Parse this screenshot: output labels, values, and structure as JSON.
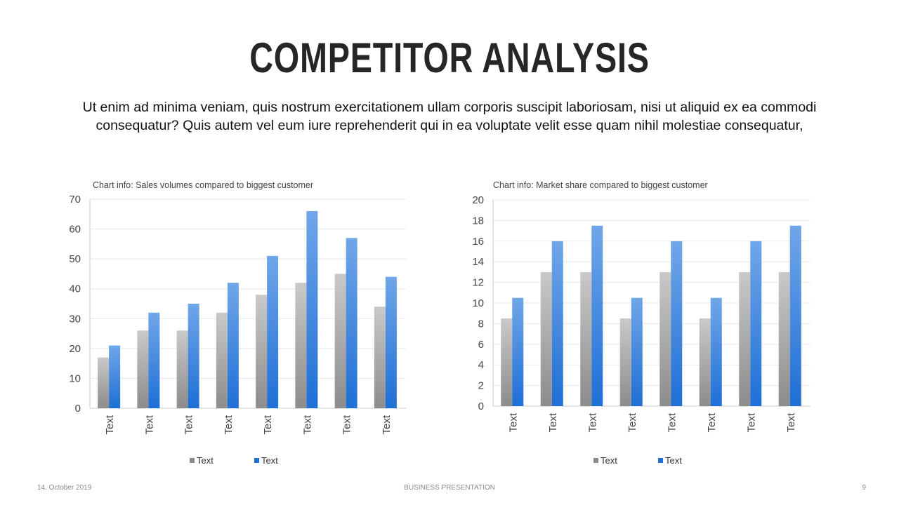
{
  "title": "COMPETITOR ANALYSIS",
  "intro": "Ut enim ad minima veniam, quis nostrum exercitationem ullam corporis suscipit laboriosam, nisi ut aliquid ex ea commodi consequatur? Quis autem vel eum iure reprehenderit qui in ea voluptate velit esse quam nihil molestiae consequatur,",
  "footer": {
    "date": "14. October 2019",
    "center": "BUSINESS PRESENTATION",
    "page": "9"
  },
  "colors": {
    "series_gray_top": "#c9c9c9",
    "series_gray_bottom": "#8c8c8c",
    "series_blue_top": "#70a6e8",
    "series_blue_bottom": "#1f6fd6",
    "grid": "#e8e8e8",
    "axis": "#cccccc"
  },
  "chart_data": [
    {
      "type": "bar",
      "title": "Chart info: Sales volumes compared to biggest customer",
      "categories": [
        "Text",
        "Text",
        "Text",
        "Text",
        "Text",
        "Text",
        "Text",
        "Text"
      ],
      "series": [
        {
          "name": "Text",
          "values": [
            17,
            26,
            26,
            32,
            38,
            42,
            45,
            34
          ]
        },
        {
          "name": "Text",
          "values": [
            21,
            32,
            35,
            42,
            51,
            66,
            57,
            44
          ]
        }
      ],
      "ylim": [
        0,
        70
      ],
      "yticks": [
        0,
        10,
        20,
        30,
        40,
        50,
        60,
        70
      ],
      "grid": true,
      "legend": "bottom"
    },
    {
      "type": "bar",
      "title": "Chart info: Market share compared to biggest customer",
      "categories": [
        "Text",
        "Text",
        "Text",
        "Text",
        "Text",
        "Text",
        "Text",
        "Text"
      ],
      "series": [
        {
          "name": "Text",
          "values": [
            8.5,
            13,
            13,
            8.5,
            13,
            8.5,
            13,
            13
          ]
        },
        {
          "name": "Text",
          "values": [
            10.5,
            16,
            17.5,
            10.5,
            16,
            10.5,
            16,
            17.5
          ]
        }
      ],
      "ylim": [
        0,
        20
      ],
      "yticks": [
        0,
        2,
        4,
        6,
        8,
        10,
        12,
        14,
        16,
        18,
        20
      ],
      "grid": true,
      "legend": "bottom"
    }
  ]
}
